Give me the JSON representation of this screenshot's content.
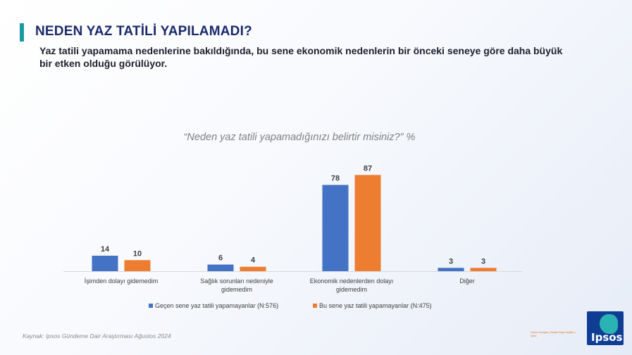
{
  "page": {
    "title": "NEDEN YAZ TATİLİ YAPILAMADI?",
    "subtitle": "Yaz tatili yapamama nedenlerine bakıldığında, bu sene ekonomik nedenlerin bir önceki seneye göre daha büyük bir etken olduğu görülüyor.",
    "question": "“Neden yaz tatili yapamadığınızı belirtir misiniz?” %",
    "source": "Kaynak: Ipsos Gündeme Dair Araştırması  Ağustos 2024",
    "tiny_note": "Game Changers | Baştan Başa Değişim | Ipsos",
    "logo_text": "Ipsos"
  },
  "colors": {
    "series_prev": "#4472c4",
    "series_curr": "#ed7d31",
    "label": "#404040",
    "axis": "#d9d9d9"
  },
  "chart_data": {
    "type": "bar",
    "title": "“Neden yaz tatili yapamadığınızı belirtir misiniz?” %",
    "xlabel": "",
    "ylabel": "%",
    "ylim": [
      0,
      100
    ],
    "grid": false,
    "legend_position": "bottom",
    "categories": [
      [
        "İşimden dolayı gidemedim"
      ],
      [
        "Sağlık sorunları nedeniyle",
        "gidemedim"
      ],
      [
        "Ekonomik nedenlerden dolayı",
        "gidemedim"
      ],
      [
        "Diğer"
      ]
    ],
    "series": [
      {
        "name": "Geçen sene yaz tatili yapamayanlar (N:576)",
        "values": [
          14,
          6,
          78,
          3
        ]
      },
      {
        "name": "Bu sene yaz tatili yapamayanlar (N:475)",
        "values": [
          10,
          4,
          87,
          3
        ]
      }
    ]
  }
}
